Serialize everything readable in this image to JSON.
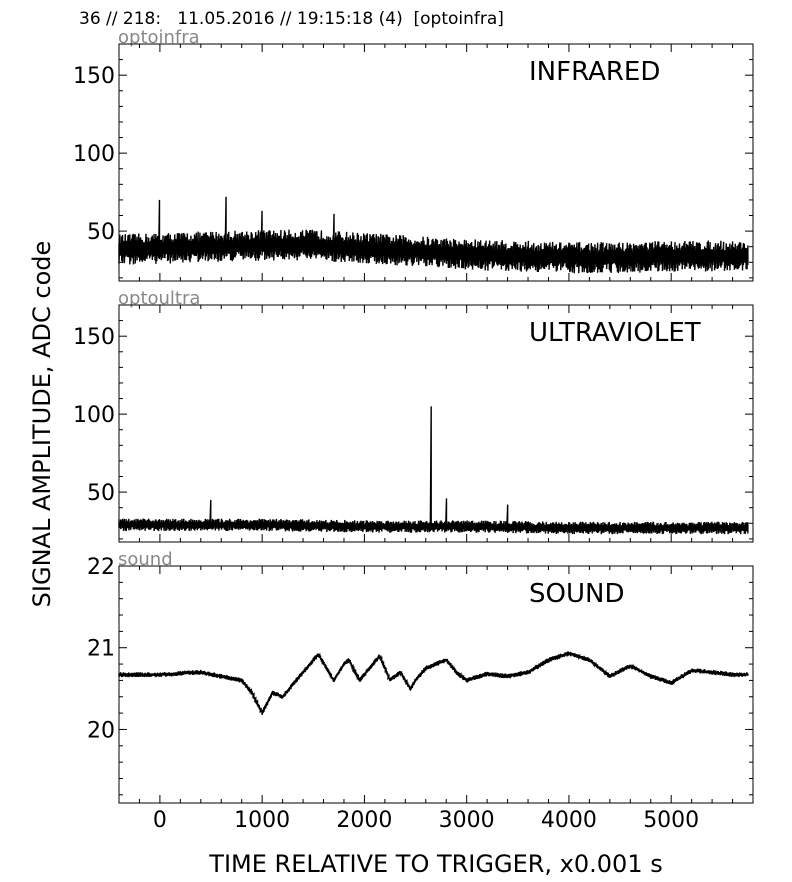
{
  "header": {
    "title": "36 // 218:   11.05.2016 // 19:15:18 (4)  [optoinfra]"
  },
  "ylabel": "SIGNAL AMPLITUDE,  ADC code",
  "xlabel": "TIME RELATIVE TO TRIGGER,   x0.001 s",
  "chart_data": [
    {
      "type": "line",
      "channel": "optoinfra",
      "title": "INFRARED",
      "xlim": [
        -400,
        5800
      ],
      "ylim": [
        18,
        170
      ],
      "xticks": [
        0,
        1000,
        2000,
        3000,
        4000,
        5000
      ],
      "yticks": [
        50,
        100,
        150
      ],
      "series": [
        {
          "x": [
            -400,
            0,
            500,
            1000,
            1500,
            2000,
            2500,
            3000,
            3500,
            4000,
            4500,
            5000,
            5500,
            5750
          ],
          "y": [
            38,
            39,
            40,
            41,
            41,
            39,
            37,
            35,
            34,
            33,
            33,
            34,
            34,
            34
          ],
          "noise": 10,
          "spikes": [
            [
              0,
              70
            ],
            [
              650,
              72
            ],
            [
              1000,
              63
            ],
            [
              1700,
              61
            ]
          ]
        }
      ]
    },
    {
      "type": "line",
      "channel": "optoultra",
      "title": "ULTRAVIOLET",
      "xlim": [
        -400,
        5800
      ],
      "ylim": [
        18,
        170
      ],
      "xticks": [
        0,
        1000,
        2000,
        3000,
        4000,
        5000
      ],
      "yticks": [
        50,
        100,
        150
      ],
      "series": [
        {
          "x": [
            -400,
            0,
            1000,
            2000,
            3000,
            4000,
            5000,
            5750
          ],
          "y": [
            29,
            29,
            29,
            28,
            28,
            27,
            27,
            27
          ],
          "noise": 4,
          "spikes": [
            [
              2650,
              105
            ],
            [
              2800,
              46
            ],
            [
              500,
              45
            ],
            [
              3400,
              42
            ]
          ]
        }
      ]
    },
    {
      "type": "line",
      "channel": "sound",
      "title": "SOUND",
      "xlim": [
        -400,
        5800
      ],
      "ylim": [
        19.1,
        22
      ],
      "xticks": [
        0,
        1000,
        2000,
        3000,
        4000,
        5000
      ],
      "yticks": [
        20,
        21,
        22
      ],
      "series": [
        {
          "x": [
            -400,
            0,
            400,
            800,
            900,
            1000,
            1100,
            1200,
            1300,
            1400,
            1550,
            1700,
            1800,
            1850,
            1950,
            2050,
            2150,
            2250,
            2350,
            2450,
            2500,
            2600,
            2800,
            2900,
            3000,
            3200,
            3400,
            3600,
            3800,
            4000,
            4200,
            4400,
            4600,
            4800,
            5000,
            5200,
            5400,
            5600,
            5750
          ],
          "y": [
            20.67,
            20.67,
            20.7,
            20.6,
            20.45,
            20.2,
            20.45,
            20.4,
            20.55,
            20.7,
            20.92,
            20.6,
            20.8,
            20.85,
            20.6,
            20.75,
            20.9,
            20.6,
            20.7,
            20.5,
            20.6,
            20.75,
            20.85,
            20.7,
            20.6,
            20.68,
            20.65,
            20.7,
            20.85,
            20.93,
            20.85,
            20.65,
            20.78,
            20.65,
            20.57,
            20.72,
            20.7,
            20.67,
            20.67
          ],
          "noise": 0.03,
          "spikes": []
        }
      ]
    }
  ]
}
